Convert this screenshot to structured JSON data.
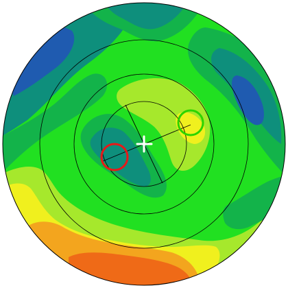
{
  "view": {
    "type": "polar-contour-map",
    "radial_rings": 4,
    "background": "#ffffff",
    "outline_color": "#000000"
  },
  "palette": {
    "deep_blue": "#1a2fd0",
    "blue": "#1f5bb0",
    "teal": "#0e8f7c",
    "green_dark": "#13b34a",
    "green": "#21e021",
    "lime": "#a6e82c",
    "yellow": "#f0f01e",
    "orange": "#f3a51e",
    "red_orange": "#ef6a17"
  },
  "markers": {
    "center_cross": {
      "icon": "cross-icon",
      "color": "#ffffff"
    },
    "red_circle": {
      "icon": "circle-icon",
      "color": "#e81818"
    },
    "green_circle": {
      "icon": "circle-icon",
      "color": "#2cd400"
    },
    "axis_lines": {
      "color": "#000000"
    }
  }
}
